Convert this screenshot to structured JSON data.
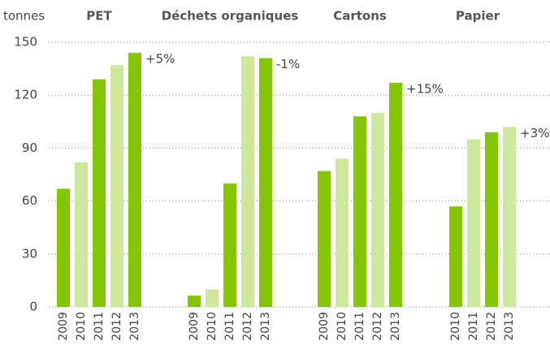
{
  "chart_data": {
    "type": "bar",
    "y_label": "tonnes",
    "colors": [
      "#84c600",
      "#cde89b"
    ],
    "ylim": [
      0,
      150
    ],
    "yticks": [
      0,
      30,
      60,
      90,
      120,
      150
    ],
    "grid": true,
    "groups": [
      {
        "name": "PET",
        "categories": [
          "2009",
          "2010",
          "2011",
          "2012",
          "2013"
        ],
        "values": [
          67,
          82,
          129,
          137,
          144
        ],
        "change": "+5%"
      },
      {
        "name": "Déchets organiques",
        "categories": [
          "2009",
          "2010",
          "2011",
          "2012",
          "2013"
        ],
        "values": [
          6.5,
          10,
          70,
          142,
          141
        ],
        "change": "-1%"
      },
      {
        "name": "Cartons",
        "categories": [
          "2009",
          "2010",
          "2011",
          "2012",
          "2013"
        ],
        "values": [
          77,
          84,
          108,
          110,
          127
        ],
        "change": "+15%"
      },
      {
        "name": "Papier",
        "categories": [
          "2010",
          "2011",
          "2012",
          "2013"
        ],
        "values": [
          57,
          95,
          99,
          102
        ],
        "change": "+3%"
      }
    ]
  }
}
